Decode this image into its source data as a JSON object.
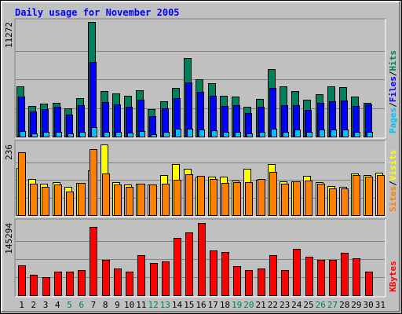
{
  "chart_data": {
    "type": "bar",
    "title": "Daily usage for November 2005",
    "days": [
      1,
      2,
      3,
      4,
      5,
      6,
      7,
      8,
      9,
      10,
      11,
      12,
      13,
      14,
      15,
      16,
      17,
      18,
      19,
      20,
      21,
      22,
      23,
      24,
      25,
      26,
      27,
      28,
      29,
      30,
      31
    ],
    "weekend_days": [
      5,
      6,
      12,
      13,
      19,
      20,
      26,
      27
    ],
    "panels": [
      {
        "id": "top",
        "max_label": "11272",
        "ymax": 11272,
        "series": [
          {
            "name": "Hits",
            "color": "#00805c",
            "values": [
              4920,
              3000,
              3250,
              3300,
              2800,
              3750,
              11272,
              4450,
              4250,
              4050,
              4550,
              2700,
              3500,
              4750,
              7700,
              5600,
              5250,
              4000,
              3950,
              2900,
              3700,
              6650,
              4950,
              4450,
              3600,
              4150,
              4950,
              4850,
              3950,
              3300,
              0
            ]
          },
          {
            "name": "Files",
            "color": "#0000ff",
            "values": [
              3920,
              2500,
              2700,
              2900,
              2200,
              3050,
              7300,
              3400,
              3200,
              2900,
              3650,
              2000,
              2800,
              3750,
              5300,
              4400,
              4000,
              3000,
              3050,
              2300,
              2900,
              4800,
              3100,
              3100,
              2600,
              3350,
              3450,
              3550,
              3000,
              3150,
              0
            ]
          },
          {
            "name": "Pages",
            "color": "#00c0ff",
            "values": [
              550,
              300,
              450,
              450,
              300,
              480,
              950,
              450,
              500,
              400,
              550,
              250,
              450,
              750,
              800,
              700,
              650,
              500,
              500,
              300,
              500,
              800,
              500,
              700,
              500,
              700,
              700,
              700,
              500,
              450,
              0
            ]
          }
        ]
      },
      {
        "id": "mid",
        "max_label": "236",
        "ymax": 236,
        "series": [
          {
            "name": "Visits",
            "color": "#ffff00",
            "values": [
              158,
              121,
              104,
              109,
              95,
              108,
              150,
              236,
              109,
              103,
              104,
              103,
              134,
              171,
              154,
              129,
              129,
              129,
              115,
              156,
              119,
              170,
              114,
              114,
              131,
              111,
              98,
              94,
              138,
              134,
              141
            ]
          },
          {
            "name": "Sites",
            "color": "#ff8000",
            "values": [
              210,
              104,
              95,
              103,
              79,
              107,
              219,
              138,
              101,
              94,
              105,
              102,
              106,
              118,
              136,
              130,
              121,
              108,
              110,
              111,
              121,
              144,
              104,
              113,
              116,
              106,
              88,
              89,
              134,
              128,
              133
            ]
          }
        ]
      },
      {
        "id": "bot",
        "max_label": "145294",
        "ymax": 145294,
        "series": [
          {
            "name": "KBytes",
            "color": "#ff0000",
            "values": [
              60000,
              41000,
              37000,
              48000,
              47000,
              50000,
              137000,
              71000,
              54000,
              48000,
              80000,
              64000,
              68000,
              116000,
              126000,
              145294,
              90000,
              87000,
              59000,
              51000,
              54000,
              80000,
              51000,
              93000,
              78000,
              71000,
              71000,
              85000,
              74000,
              48000,
              0
            ]
          }
        ]
      }
    ],
    "legends": {
      "top": [
        "Pages",
        "/",
        "Files",
        "/",
        "Hits"
      ],
      "mid": [
        "Sites",
        "/",
        "Visits"
      ],
      "bot": [
        "KBytes"
      ]
    },
    "grid": true
  }
}
